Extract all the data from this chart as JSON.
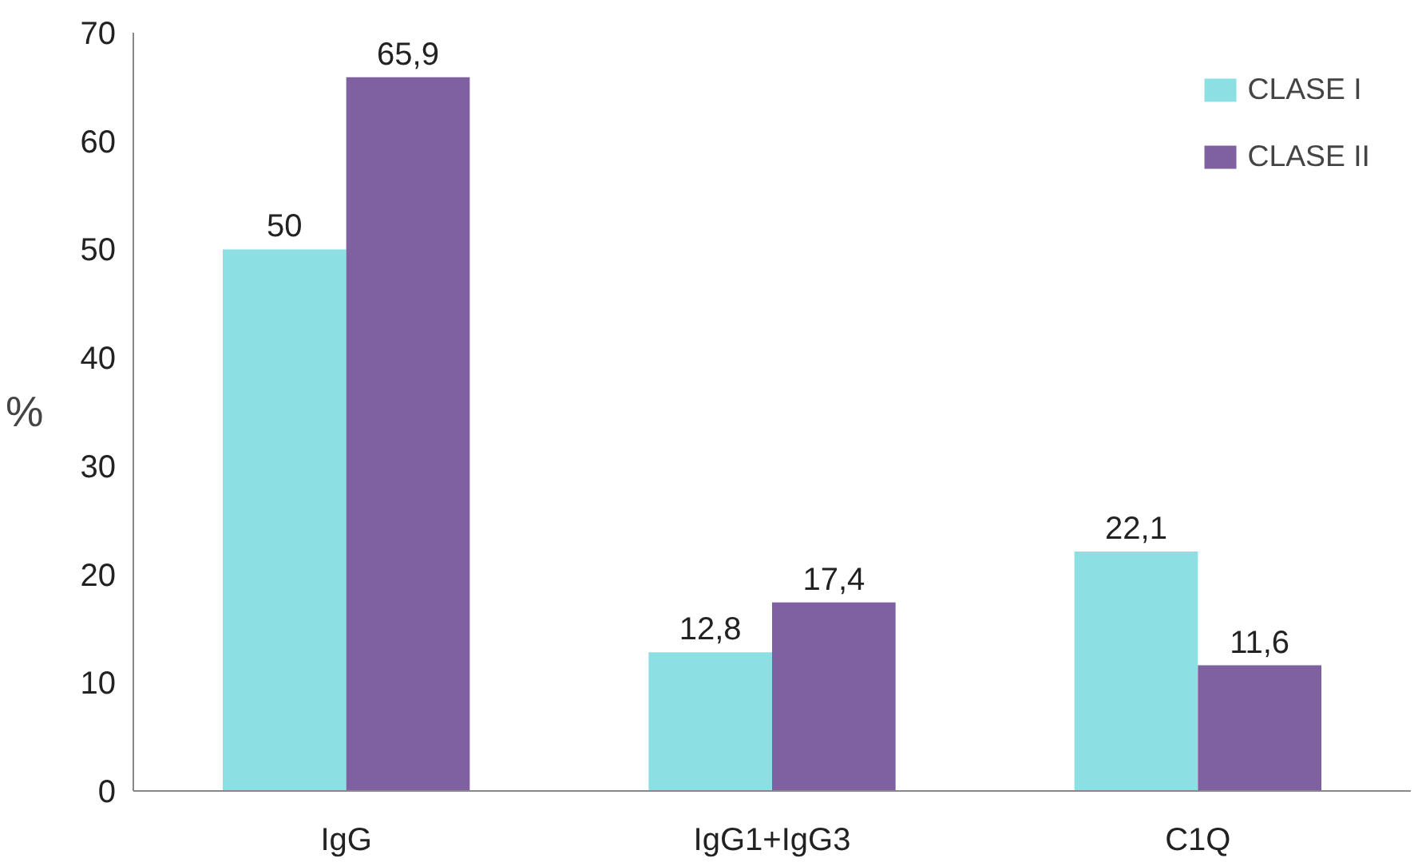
{
  "chart_data": {
    "type": "bar",
    "ylabel": "%",
    "categories": [
      "IgG",
      "IgG1+IgG3",
      "C1Q"
    ],
    "series": [
      {
        "name": "CLASE I",
        "color": "#8ce0e4",
        "values": [
          50,
          12.8,
          22.1
        ],
        "value_labels": [
          "50",
          "12,8",
          "22,1"
        ]
      },
      {
        "name": "CLASE II",
        "color": "#7f60a0",
        "values": [
          65.9,
          17.4,
          11.6
        ],
        "value_labels": [
          "65,9",
          "17,4",
          "11,6"
        ]
      }
    ],
    "ylim": [
      0,
      70
    ],
    "yticks": [
      0,
      10,
      20,
      30,
      40,
      50,
      60,
      70
    ],
    "legend": "top right"
  }
}
